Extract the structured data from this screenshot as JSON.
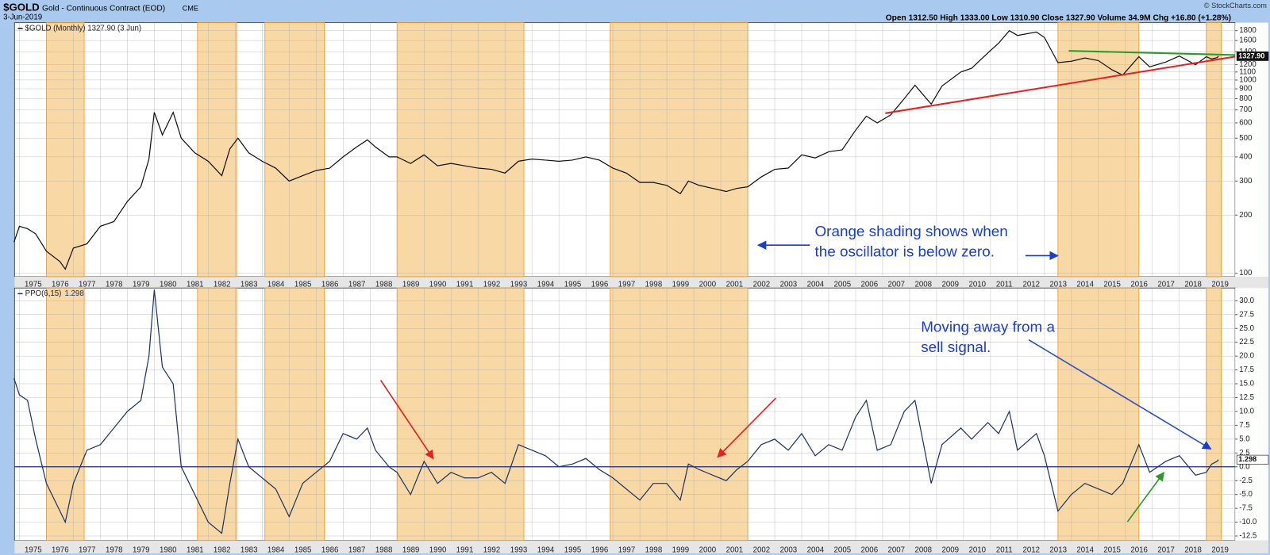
{
  "header": {
    "symbol": "$GOLD",
    "name": "Gold - Continuous Contract (EOD)",
    "exchange": "CME",
    "date": "3-Jun-2019",
    "quote": "Open 1312.50 High 1333.00 Low 1310.90 Close 1327.90 Volume 34.9M Chg +16.80 (+1.28%)",
    "credit": "© StockCharts.com"
  },
  "chart_data": [
    {
      "type": "line",
      "legend": "$GOLD (Monthly) 1327.90 (3 Jun)",
      "last_label": "1327.90",
      "color": "#111111",
      "log_scale": true,
      "grid": true,
      "xlim": [
        1974.82,
        2020.07
      ],
      "ylim": [
        96,
        1980
      ],
      "xticks": [
        1975,
        1976,
        1977,
        1978,
        1979,
        1980,
        1981,
        1982,
        1983,
        1984,
        1985,
        1986,
        1987,
        1988,
        1989,
        1990,
        1991,
        1992,
        1993,
        1994,
        1995,
        1996,
        1997,
        1998,
        1999,
        2000,
        2001,
        2002,
        2003,
        2004,
        2005,
        2006,
        2007,
        2008,
        2009,
        2010,
        2011,
        2012,
        2013,
        2014,
        2015,
        2016,
        2017,
        2018,
        2019
      ],
      "yticks": [
        100,
        200,
        300,
        400,
        500,
        600,
        700,
        800,
        900,
        1000,
        1100,
        1200,
        1400,
        1600,
        1800
      ],
      "shaded_ranges": [
        [
          1976.0,
          1977.4
        ],
        [
          1981.6,
          1983.05
        ],
        [
          1984.1,
          1986.3
        ],
        [
          1989.0,
          1993.7
        ],
        [
          1996.9,
          2002.0
        ],
        [
          2013.5,
          2016.5
        ],
        [
          2019.0,
          2019.55
        ]
      ],
      "annotations": [
        "Orange shading shows when",
        "the oscillator is below zero."
      ],
      "trendlines": [
        {
          "color": "#e82020",
          "x": [
            2007.1,
            2020.07
          ],
          "values": [
            673,
            1322
          ]
        },
        {
          "color": "#2a9a2a",
          "x": [
            2013.9,
            2020.07
          ],
          "values": [
            1415,
            1347
          ]
        }
      ],
      "x": [
        1974.8,
        1975.0,
        1975.3,
        1975.6,
        1976.0,
        1976.5,
        1976.7,
        1977.0,
        1977.5,
        1978.0,
        1978.5,
        1979.0,
        1979.5,
        1979.8,
        1980.0,
        1980.3,
        1980.7,
        1981.0,
        1981.5,
        1982.0,
        1982.5,
        1982.8,
        1983.1,
        1983.5,
        1984.0,
        1984.5,
        1985.0,
        1985.5,
        1986.0,
        1986.5,
        1987.0,
        1987.5,
        1987.9,
        1988.2,
        1988.7,
        1989.0,
        1989.5,
        1990.0,
        1990.5,
        1991.0,
        1991.5,
        1992.0,
        1992.5,
        1993.0,
        1993.5,
        1994.0,
        1994.5,
        1995.0,
        1995.5,
        1996.0,
        1996.5,
        1997.0,
        1997.5,
        1998.0,
        1998.5,
        1999.0,
        1999.5,
        1999.8,
        2000.2,
        2000.7,
        2001.2,
        2001.6,
        2002.0,
        2002.5,
        2003.0,
        2003.5,
        2004.0,
        2004.5,
        2005.0,
        2005.5,
        2006.0,
        2006.4,
        2006.8,
        2007.3,
        2007.8,
        2008.2,
        2008.8,
        2009.2,
        2009.9,
        2010.3,
        2010.9,
        2011.3,
        2011.7,
        2012.0,
        2012.7,
        2013.0,
        2013.5,
        2014.0,
        2014.5,
        2015.0,
        2015.5,
        2015.9,
        2016.5,
        2016.9,
        2017.5,
        2018.0,
        2018.6,
        2019.0,
        2019.2,
        2019.4,
        2019.45
      ],
      "values": [
        145,
        175,
        170,
        160,
        130,
        115,
        105,
        135,
        142,
        175,
        185,
        235,
        280,
        390,
        680,
        520,
        680,
        500,
        420,
        380,
        320,
        440,
        500,
        420,
        380,
        350,
        300,
        320,
        340,
        350,
        400,
        450,
        490,
        450,
        400,
        400,
        370,
        410,
        360,
        370,
        360,
        350,
        345,
        330,
        380,
        390,
        385,
        380,
        385,
        400,
        385,
        350,
        330,
        295,
        295,
        285,
        258,
        300,
        285,
        275,
        265,
        275,
        280,
        315,
        345,
        350,
        410,
        395,
        425,
        435,
        550,
        650,
        600,
        660,
        800,
        940,
        750,
        930,
        1100,
        1150,
        1380,
        1550,
        1800,
        1700,
        1770,
        1660,
        1230,
        1250,
        1300,
        1260,
        1130,
        1060,
        1320,
        1170,
        1240,
        1330,
        1200,
        1320,
        1285,
        1305,
        1327.9
      ]
    },
    {
      "type": "line",
      "legend": "PPO(6,15)",
      "last_label": "1.298",
      "color": "#1c3566",
      "grid": true,
      "xlim": [
        1974.82,
        2020.07
      ],
      "ylim": [
        -13.3,
        32.3
      ],
      "yticks": [
        {
          "value": -12.5,
          "label": "-12.5"
        },
        {
          "value": -10,
          "label": "-10.0"
        },
        {
          "value": -7.5,
          "label": "-7.5"
        },
        {
          "value": -5,
          "label": "-5.0"
        },
        {
          "value": -2.5,
          "label": "-2.5"
        },
        {
          "value": 0,
          "label": "0.0"
        },
        {
          "value": 2.5,
          "label": "2.5"
        },
        {
          "value": 5,
          "label": "5.0"
        },
        {
          "value": 7.5,
          "label": "7.5"
        },
        {
          "value": 10,
          "label": "10.0"
        },
        {
          "value": 12.5,
          "label": "12.5"
        },
        {
          "value": 15,
          "label": "15.0"
        },
        {
          "value": 17.5,
          "label": "17.5"
        },
        {
          "value": 20,
          "label": "20.0"
        },
        {
          "value": 22.5,
          "label": "22.5"
        },
        {
          "value": 25,
          "label": "25.0"
        },
        {
          "value": 27.5,
          "label": "27.5"
        },
        {
          "value": 30,
          "label": "30.0"
        }
      ],
      "annotations": [
        "Moving away from a",
        "sell signal."
      ],
      "x": [
        1974.8,
        1975.0,
        1975.3,
        1975.6,
        1976.0,
        1976.5,
        1976.7,
        1977.0,
        1977.5,
        1978.0,
        1978.5,
        1979.0,
        1979.5,
        1979.8,
        1980.0,
        1980.3,
        1980.7,
        1981.0,
        1981.5,
        1982.0,
        1982.5,
        1982.8,
        1983.1,
        1983.5,
        1984.0,
        1984.5,
        1985.0,
        1985.5,
        1986.0,
        1986.5,
        1987.0,
        1987.5,
        1987.9,
        1988.2,
        1988.7,
        1989.0,
        1989.5,
        1990.0,
        1990.5,
        1991.0,
        1991.5,
        1992.0,
        1992.5,
        1993.0,
        1993.5,
        1994.0,
        1994.5,
        1995.0,
        1995.5,
        1996.0,
        1996.5,
        1997.0,
        1997.5,
        1998.0,
        1998.5,
        1999.0,
        1999.5,
        1999.8,
        2000.2,
        2000.7,
        2001.2,
        2001.6,
        2002.0,
        2002.5,
        2003.0,
        2003.5,
        2004.0,
        2004.5,
        2005.0,
        2005.5,
        2006.0,
        2006.4,
        2006.8,
        2007.3,
        2007.8,
        2008.2,
        2008.8,
        2009.2,
        2009.9,
        2010.3,
        2010.9,
        2011.3,
        2011.7,
        2012.0,
        2012.7,
        2013.0,
        2013.5,
        2014.0,
        2014.5,
        2015.0,
        2015.5,
        2015.9,
        2016.5,
        2016.9,
        2017.5,
        2018.0,
        2018.6,
        2019.0,
        2019.2,
        2019.4,
        2019.45
      ],
      "values": [
        16,
        13,
        12,
        5,
        -3,
        -8,
        -10,
        -3,
        3,
        4,
        7,
        10,
        12,
        20,
        32,
        18,
        15,
        0,
        -5,
        -10,
        -12,
        -3,
        5,
        0,
        -2,
        -4,
        -9,
        -3,
        -1,
        1,
        6,
        5,
        7,
        3,
        0,
        -1,
        -5,
        1,
        -3,
        -1,
        -2,
        -2,
        -1,
        -3,
        4,
        3,
        2,
        0,
        0.5,
        1.5,
        -0.5,
        -2,
        -4,
        -6,
        -3,
        -3,
        -6,
        0.5,
        -0.5,
        -1.5,
        -2.5,
        -0.5,
        1,
        4,
        5,
        3,
        6,
        2,
        4,
        3,
        9,
        12,
        3,
        4,
        10,
        12,
        -3,
        4,
        7,
        5,
        8,
        6,
        10,
        3,
        6,
        2,
        -8,
        -5,
        -3,
        -4,
        -5,
        -3,
        4,
        -1,
        1,
        2,
        -1.5,
        -1,
        0.5,
        1,
        1.298
      ]
    }
  ]
}
